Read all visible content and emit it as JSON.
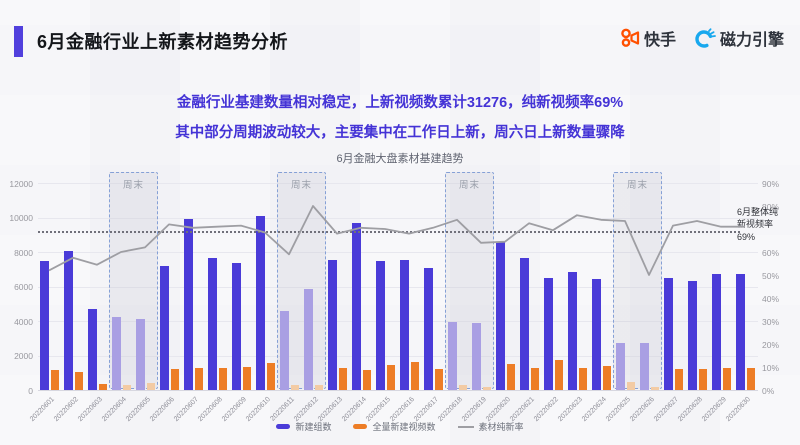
{
  "header": {
    "title": "6月金融行业上新素材趋势分析",
    "logos": {
      "kuaishou": "快手",
      "engine": "磁力引擎"
    }
  },
  "insight": {
    "line1": "金融行业基建数量相对稳定，上新视频数累计31276，纯新视频率69%",
    "line2": "其中部分周期波动较大，主要集中在工作日上新，周六日上新数量骤降"
  },
  "colors": {
    "accent_purple": "#5140dd",
    "insight_text": "#4433d6",
    "bar_blue": "#4a3bd8",
    "bar_blue_weekend": "#a99fe3",
    "bar_orange": "#ed7d26",
    "bar_orange_weekend": "#f3cba4",
    "rate_line": "#9e9ea3",
    "kuaishou_orange": "#ff5000",
    "engine_blue": "#18a8ee"
  },
  "chart_data": {
    "type": "bar",
    "title": "6月金融大盘素材基建趋势",
    "categories": [
      "20220601",
      "20220602",
      "20220603",
      "20220604",
      "20220605",
      "20220606",
      "20220607",
      "20220608",
      "20220609",
      "20220610",
      "20220611",
      "20220612",
      "20220613",
      "20220614",
      "20220615",
      "20220616",
      "20220617",
      "20220618",
      "20220619",
      "20220620",
      "20220621",
      "20220622",
      "20220623",
      "20220624",
      "20220625",
      "20220626",
      "20220627",
      "20220628",
      "20220629",
      "20220630"
    ],
    "series": [
      {
        "name": "新建组数",
        "type": "bar",
        "axis": "left",
        "color": "#4a3bd8",
        "weekend_color": "#a99fe3",
        "values": [
          7500,
          8050,
          4700,
          4250,
          4100,
          7200,
          9900,
          7650,
          7350,
          10100,
          4600,
          5850,
          7550,
          9700,
          7450,
          7550,
          7100,
          3950,
          3900,
          8600,
          7650,
          6500,
          6850,
          6450,
          2750,
          2700,
          6500,
          6300,
          6700,
          6700
        ]
      },
      {
        "name": "全量新建视频数",
        "type": "bar",
        "axis": "left",
        "color": "#ed7d26",
        "weekend_color": "#f3cba4",
        "values": [
          1150,
          1050,
          350,
          280,
          400,
          1200,
          1300,
          1300,
          1350,
          1550,
          280,
          280,
          1250,
          1150,
          1450,
          1600,
          1200,
          300,
          150,
          1500,
          1300,
          1750,
          1250,
          1400,
          450,
          200,
          1200,
          1200,
          1250,
          1300
        ]
      },
      {
        "name": "素材纯新率",
        "type": "line",
        "axis": "right",
        "color": "#9e9ea3",
        "values": [
          52,
          57.5,
          54.5,
          60,
          62,
          72,
          70.5,
          71,
          71.5,
          68.5,
          59,
          80,
          68,
          70.5,
          70,
          68,
          70.5,
          74,
          64,
          64.5,
          72.5,
          69.5,
          76,
          74,
          73.5,
          50,
          71.5,
          73.5,
          71,
          71
        ]
      }
    ],
    "weekend_label": "周末",
    "weekend_ranges": [
      [
        3,
        4
      ],
      [
        10,
        11
      ],
      [
        17,
        18
      ],
      [
        24,
        25
      ]
    ],
    "left_axis": {
      "min": 0,
      "max": 12000,
      "ticks": [
        0,
        2000,
        4000,
        6000,
        8000,
        10000,
        12000
      ]
    },
    "right_axis": {
      "min": 0,
      "max": 90,
      "ticks": [
        {
          "v": 0,
          "label": "0%"
        },
        {
          "v": 10,
          "label": "10%"
        },
        {
          "v": 20,
          "label": "20%"
        },
        {
          "v": 30,
          "label": "30%"
        },
        {
          "v": 40,
          "label": "40%"
        },
        {
          "v": 50,
          "label": "50%"
        },
        {
          "v": 60,
          "label": "60%"
        },
        {
          "v": 80,
          "label": "80%"
        },
        {
          "v": 90,
          "label": "90%"
        }
      ]
    },
    "reference_line": {
      "value": 69,
      "label": "6月整体纯新视频率69%"
    },
    "grid": true,
    "legend_position": "bottom"
  }
}
